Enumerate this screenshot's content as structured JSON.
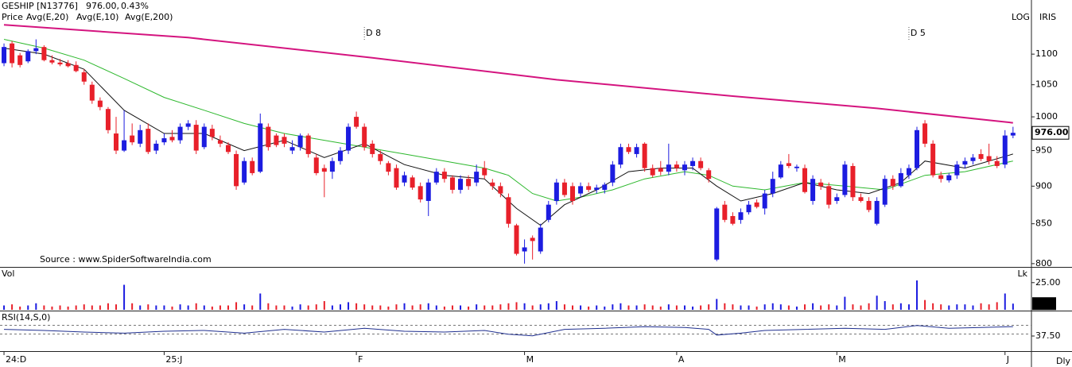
{
  "chart_data": [
    {
      "type": "candlestick",
      "symbol": "GESHIP [N13776]",
      "last_price": "976.00,",
      "change": "0.43%",
      "change_color": "#1a9a1a",
      "name": "Price",
      "up_color": "#1c1ce0",
      "down_color": "#e8202a",
      "scale_label": "LOG",
      "brand": "IRIS",
      "price_tag": "976.00",
      "source": "Source : www.SpiderSoftwareIndia.com",
      "log": true,
      "xlim": [
        -0.5,
        128.3
      ],
      "ylim": [
        797,
        1180
      ],
      "yticks": [
        800,
        850,
        900,
        950,
        1000,
        1050,
        1100
      ],
      "annotations": [
        {
          "x": 45,
          "label": "D 8"
        },
        {
          "x": 113,
          "label": "D 5"
        }
      ],
      "open": [
        1085,
        1118,
        1098,
        1088,
        1105,
        1112,
        1090,
        1086,
        1085,
        1082,
        1070,
        1050,
        1025,
        1012,
        975,
        950,
        972,
        960,
        982,
        950,
        962,
        970,
        965,
        985,
        988,
        955,
        982,
        965,
        958,
        945,
        905,
        935,
        920,
        985,
        972,
        970,
        950,
        955,
        972,
        940,
        925,
        920,
        935,
        950,
        1000,
        985,
        960,
        945,
        932,
        925,
        905,
        912,
        900,
        880,
        905,
        920,
        912,
        895,
        910,
        905,
        925,
        905,
        900,
        885,
        848,
        815,
        832,
        815,
        855,
        880,
        905,
        900,
        890,
        900,
        895,
        895,
        905,
        930,
        955,
        945,
        960,
        925,
        925,
        920,
        930,
        922,
        928,
        935,
        922,
        805,
        875,
        860,
        855,
        865,
        878,
        870,
        890,
        912,
        932,
        925,
        925,
        880,
        905,
        900,
        880,
        888,
        928,
        885,
        880,
        850,
        875,
        910,
        900,
        915,
        925,
        990,
        960,
        915,
        908,
        915,
        930,
        935,
        945,
        942,
        935,
        930,
        972
      ],
      "high": [
        1118,
        1122,
        1102,
        1108,
        1125,
        1115,
        1098,
        1092,
        1090,
        1088,
        1075,
        1055,
        1030,
        1015,
        1000,
        1010,
        990,
        988,
        990,
        965,
        975,
        980,
        990,
        995,
        995,
        990,
        988,
        972,
        962,
        950,
        940,
        940,
        1005,
        990,
        975,
        975,
        965,
        975,
        975,
        945,
        930,
        940,
        955,
        990,
        1008,
        990,
        965,
        950,
        935,
        930,
        920,
        915,
        905,
        910,
        925,
        925,
        915,
        915,
        915,
        930,
        935,
        910,
        905,
        890,
        850,
        830,
        835,
        850,
        880,
        910,
        910,
        905,
        905,
        905,
        902,
        905,
        935,
        960,
        960,
        960,
        962,
        930,
        935,
        960,
        935,
        935,
        940,
        940,
        925,
        872,
        880,
        865,
        870,
        880,
        882,
        895,
        920,
        935,
        945,
        930,
        930,
        915,
        910,
        905,
        890,
        935,
        932,
        890,
        885,
        885,
        915,
        915,
        925,
        930,
        985,
        995,
        965,
        920,
        918,
        935,
        940,
        945,
        952,
        960,
        942,
        980,
        985
      ],
      "low": [
        1080,
        1078,
        1078,
        1085,
        1100,
        1088,
        1083,
        1080,
        1078,
        1070,
        1050,
        1020,
        1010,
        975,
        945,
        948,
        958,
        955,
        945,
        945,
        958,
        962,
        960,
        980,
        945,
        952,
        965,
        955,
        945,
        895,
        902,
        915,
        918,
        950,
        955,
        955,
        945,
        950,
        940,
        915,
        885,
        910,
        930,
        945,
        982,
        950,
        940,
        930,
        915,
        895,
        900,
        895,
        878,
        860,
        902,
        905,
        890,
        890,
        895,
        900,
        910,
        895,
        885,
        845,
        810,
        800,
        805,
        812,
        852,
        875,
        885,
        875,
        885,
        892,
        890,
        890,
        900,
        925,
        945,
        940,
        920,
        912,
        915,
        915,
        920,
        915,
        922,
        922,
        905,
        803,
        852,
        848,
        850,
        862,
        870,
        862,
        885,
        910,
        925,
        920,
        890,
        875,
        895,
        870,
        876,
        885,
        880,
        878,
        865,
        848,
        872,
        895,
        898,
        910,
        922,
        955,
        912,
        905,
        905,
        910,
        925,
        930,
        935,
        930,
        925,
        925,
        968
      ],
      "close": [
        1112,
        1085,
        1082,
        1105,
        1110,
        1090,
        1086,
        1083,
        1080,
        1072,
        1055,
        1025,
        1015,
        980,
        950,
        965,
        962,
        980,
        948,
        960,
        968,
        965,
        985,
        990,
        950,
        985,
        970,
        960,
        948,
        900,
        935,
        918,
        990,
        955,
        958,
        960,
        955,
        972,
        945,
        918,
        920,
        935,
        950,
        985,
        985,
        955,
        945,
        935,
        920,
        898,
        915,
        898,
        882,
        905,
        920,
        910,
        895,
        910,
        900,
        920,
        915,
        900,
        890,
        850,
        812,
        820,
        828,
        845,
        875,
        905,
        888,
        880,
        900,
        895,
        898,
        902,
        930,
        955,
        948,
        955,
        925,
        915,
        920,
        930,
        925,
        930,
        935,
        925,
        910,
        870,
        855,
        850,
        865,
        875,
        872,
        890,
        910,
        930,
        928,
        927,
        892,
        910,
        900,
        875,
        885,
        930,
        885,
        880,
        868,
        880,
        910,
        900,
        918,
        925,
        980,
        960,
        915,
        910,
        915,
        930,
        935,
        940,
        938,
        935,
        928,
        972,
        976
      ],
      "lines": [
        {
          "name": "Avg(E,20)",
          "color": "#2db82d",
          "x": [
            0,
            5,
            10,
            15,
            20,
            25,
            30,
            35,
            40,
            45,
            50,
            55,
            60,
            63,
            66,
            69,
            72,
            76,
            80,
            85,
            88,
            91,
            95,
            100,
            105,
            110,
            115,
            120,
            126
          ],
          "values": [
            1125,
            1110,
            1090,
            1060,
            1030,
            1010,
            990,
            975,
            965,
            955,
            945,
            935,
            925,
            915,
            890,
            880,
            885,
            895,
            910,
            920,
            915,
            900,
            895,
            905,
            900,
            895,
            915,
            920,
            935
          ]
        },
        {
          "name": "Avg(E,10)",
          "color": "#111111",
          "x": [
            0,
            5,
            10,
            15,
            20,
            25,
            30,
            35,
            40,
            45,
            50,
            55,
            60,
            64,
            67,
            70,
            74,
            78,
            82,
            86,
            89,
            92,
            96,
            100,
            104,
            108,
            112,
            115,
            120,
            126
          ],
          "values": [
            1110,
            1100,
            1075,
            1010,
            975,
            975,
            950,
            965,
            940,
            960,
            930,
            915,
            910,
            870,
            848,
            875,
            895,
            920,
            925,
            925,
            900,
            880,
            890,
            905,
            895,
            890,
            905,
            935,
            925,
            945
          ]
        },
        {
          "name": "Avg(E,200)",
          "color": "#d4147f",
          "x": [
            0,
            23,
            46,
            69,
            91,
            109,
            126
          ],
          "values": [
            1150,
            1128,
            1094,
            1058,
            1032,
            1013,
            991
          ]
        }
      ]
    },
    {
      "type": "bar",
      "title": "Vol",
      "unit": "Lk",
      "xlim": [
        -0.5,
        128.3
      ],
      "ylim": [
        0,
        38
      ],
      "yticks": [
        {
          "value": 25,
          "label": "25.00"
        }
      ],
      "values": [
        4,
        5,
        3,
        4,
        6,
        4,
        3,
        4,
        3,
        4,
        5,
        4,
        4,
        6,
        5,
        23,
        6,
        4,
        5,
        4,
        4,
        3,
        5,
        4,
        6,
        4,
        3,
        4,
        4,
        7,
        5,
        4,
        15,
        6,
        4,
        4,
        3,
        5,
        4,
        5,
        8,
        4,
        5,
        7,
        6,
        5,
        4,
        4,
        3,
        5,
        6,
        4,
        5,
        6,
        4,
        3,
        4,
        4,
        3,
        5,
        4,
        4,
        5,
        6,
        7,
        6,
        4,
        5,
        6,
        8,
        5,
        4,
        4,
        3,
        4,
        3,
        5,
        6,
        4,
        4,
        5,
        4,
        3,
        5,
        4,
        4,
        3,
        4,
        5,
        10,
        6,
        5,
        4,
        4,
        3,
        5,
        6,
        5,
        4,
        3,
        5,
        6,
        4,
        5,
        4,
        12,
        5,
        4,
        6,
        13,
        8,
        5,
        6,
        5,
        27,
        9,
        6,
        5,
        4,
        5,
        5,
        4,
        6,
        5,
        7,
        15,
        5.69
      ]
    },
    {
      "type": "line",
      "title": "RSI(14,S,0)",
      "period": "Dly",
      "color": "#1f2f8f",
      "xlim": [
        -0.5,
        128.3
      ],
      "ylim": [
        0,
        100
      ],
      "yticks": [
        {
          "value": 37.5,
          "label": "37.50"
        }
      ],
      "x": [
        0,
        5,
        10,
        15,
        20,
        25,
        30,
        35,
        40,
        45,
        50,
        55,
        60,
        63,
        66,
        70,
        75,
        80,
        85,
        88,
        89,
        92,
        95,
        100,
        105,
        110,
        114,
        118,
        122,
        126
      ],
      "values": [
        55,
        52,
        48,
        45,
        50,
        52,
        45,
        55,
        48,
        58,
        50,
        48,
        52,
        42,
        38,
        55,
        58,
        62,
        60,
        55,
        40,
        45,
        52,
        55,
        58,
        55,
        65,
        58,
        60,
        62
      ],
      "xticks": [
        {
          "value": 0,
          "label": "24:D"
        },
        {
          "value": 20,
          "label": "25:J"
        },
        {
          "value": 44,
          "label": "F"
        },
        {
          "value": 65,
          "label": "M"
        },
        {
          "value": 84,
          "label": "A"
        },
        {
          "value": 104,
          "label": "M"
        },
        {
          "value": 125,
          "label": "J"
        }
      ]
    }
  ]
}
